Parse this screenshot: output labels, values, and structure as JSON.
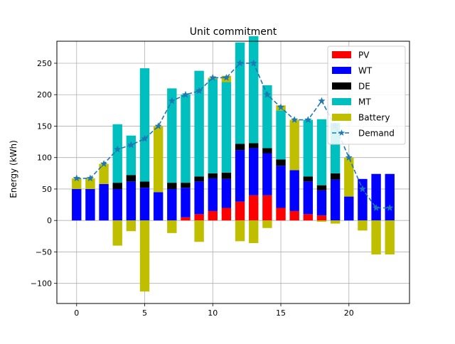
{
  "chart_data": {
    "type": "bar",
    "title": "Unit commitment",
    "xlabel": "",
    "ylabel": "Energy (kWh)",
    "xlim": [
      -1.45,
      24.45
    ],
    "ylim": [
      -132,
      285
    ],
    "xticks": [
      0,
      5,
      10,
      15,
      20
    ],
    "yticks": [
      -100,
      -50,
      0,
      50,
      100,
      150,
      200,
      250
    ],
    "grid": true,
    "legend_position": "upper right",
    "x": [
      0,
      1,
      2,
      3,
      4,
      5,
      6,
      7,
      8,
      9,
      10,
      11,
      12,
      13,
      14,
      15,
      16,
      17,
      18,
      19,
      20,
      21,
      22,
      23
    ],
    "series": [
      {
        "name": "PV",
        "color": "#ff0000",
        "values": [
          0,
          0,
          0,
          0,
          0,
          0,
          0,
          0,
          5,
          10,
          15,
          20,
          30,
          40,
          40,
          20,
          15,
          10,
          8,
          0,
          0,
          0,
          0,
          0
        ]
      },
      {
        "name": "WT",
        "color": "#0000ff",
        "values": [
          50,
          50,
          58,
          50,
          62,
          52,
          45,
          50,
          47,
          52,
          52,
          46,
          82,
          75,
          67,
          67,
          65,
          52,
          40,
          65,
          38,
          66,
          74,
          74
        ]
      },
      {
        "name": "DE",
        "color": "#000000",
        "values": [
          0,
          0,
          0,
          10,
          10,
          10,
          0,
          10,
          8,
          8,
          8,
          10,
          10,
          8,
          8,
          10,
          0,
          8,
          8,
          10,
          0,
          0,
          0,
          0
        ]
      },
      {
        "name": "MT",
        "color": "#00bfbf",
        "values": [
          0,
          0,
          0,
          93,
          63,
          180,
          0,
          150,
          140,
          168,
          150,
          144,
          161,
          170,
          100,
          78,
          0,
          90,
          105,
          80,
          0,
          0,
          0,
          0
        ]
      },
      {
        "name": "Battery",
        "color": "#bfbf00",
        "values": [
          17,
          17,
          32,
          -40,
          -17,
          -113,
          105,
          -20,
          0,
          -34,
          2,
          10,
          -33,
          -36,
          -12,
          8,
          80,
          0,
          -2,
          -5,
          62,
          -16,
          -54,
          -54
        ]
      }
    ],
    "line_series": {
      "name": "Demand",
      "color": "#1f77b4",
      "marker": "star",
      "linestyle": "dashed",
      "values": [
        67,
        67,
        90,
        113,
        120,
        130,
        150,
        190,
        200,
        206,
        227,
        227,
        250,
        250,
        200,
        180,
        160,
        160,
        190,
        150,
        100,
        50,
        20,
        20
      ]
    }
  }
}
